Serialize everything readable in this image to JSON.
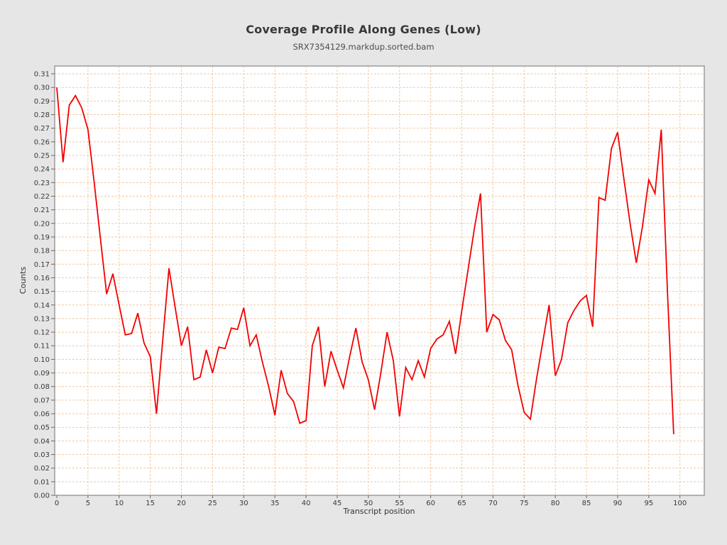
{
  "title": "Coverage Profile Along Genes (Low)",
  "subtitle": "SRX7354129.markdup.sorted.bam",
  "colors": {
    "page_background": "#e6e6e6",
    "plot_background": "#ffffff",
    "frame_border": "#9c9c9c",
    "grid": "#f3c9a2",
    "tick": "#666666",
    "series_line": "#f20000",
    "title_text": "#383838",
    "label_text": "#333333"
  },
  "chart_data": {
    "type": "line",
    "title": "Coverage Profile Along Genes (Low)",
    "subtitle": "SRX7354129.markdup.sorted.bam",
    "xlabel": "Transcript position",
    "ylabel": "Counts",
    "xlim": [
      0,
      104
    ],
    "ylim": [
      0,
      0.3157
    ],
    "grid": true,
    "grid_style": "dashed",
    "legend": false,
    "x_ticks": [
      0,
      5,
      10,
      15,
      20,
      25,
      30,
      35,
      40,
      45,
      50,
      55,
      60,
      65,
      70,
      75,
      80,
      85,
      90,
      95,
      100
    ],
    "y_ticks": [
      0.0,
      0.01,
      0.02,
      0.03,
      0.04,
      0.05,
      0.06,
      0.07,
      0.08,
      0.09,
      0.1,
      0.11,
      0.12,
      0.13,
      0.14,
      0.15,
      0.16,
      0.17,
      0.18,
      0.19,
      0.2,
      0.21,
      0.22,
      0.23,
      0.24,
      0.25,
      0.26,
      0.27,
      0.28,
      0.29,
      0.3,
      0.31
    ],
    "series": [
      {
        "name": "SRX7354129.markdup.sorted.bam",
        "x": [
          0,
          1,
          2,
          3,
          4,
          5,
          6,
          7,
          8,
          9,
          10,
          11,
          12,
          13,
          14,
          15,
          16,
          17,
          18,
          19,
          20,
          21,
          22,
          23,
          24,
          25,
          26,
          27,
          28,
          29,
          30,
          31,
          32,
          33,
          34,
          35,
          36,
          37,
          38,
          39,
          40,
          41,
          42,
          43,
          44,
          45,
          46,
          47,
          48,
          49,
          50,
          51,
          52,
          53,
          54,
          55,
          56,
          57,
          58,
          59,
          60,
          61,
          62,
          63,
          64,
          65,
          66,
          67,
          68,
          69,
          70,
          71,
          72,
          73,
          74,
          75,
          76,
          77,
          78,
          79,
          80,
          81,
          82,
          83,
          84,
          85,
          86,
          87,
          88,
          89,
          90,
          91,
          92,
          93,
          94,
          95,
          96,
          97,
          98,
          99
        ],
        "values": [
          0.3,
          0.245,
          0.287,
          0.294,
          0.285,
          0.269,
          0.23,
          0.189,
          0.148,
          0.163,
          0.14,
          0.118,
          0.119,
          0.134,
          0.112,
          0.102,
          0.06,
          0.114,
          0.167,
          0.138,
          0.11,
          0.124,
          0.085,
          0.087,
          0.107,
          0.09,
          0.109,
          0.108,
          0.123,
          0.122,
          0.138,
          0.11,
          0.118,
          0.098,
          0.08,
          0.059,
          0.092,
          0.075,
          0.069,
          0.053,
          0.055,
          0.11,
          0.124,
          0.08,
          0.106,
          0.092,
          0.079,
          0.102,
          0.123,
          0.098,
          0.085,
          0.063,
          0.09,
          0.12,
          0.099,
          0.058,
          0.094,
          0.085,
          0.099,
          0.087,
          0.108,
          0.115,
          0.118,
          0.128,
          0.104,
          0.136,
          0.166,
          0.196,
          0.222,
          0.12,
          0.133,
          0.129,
          0.114,
          0.107,
          0.081,
          0.061,
          0.056,
          0.086,
          0.113,
          0.14,
          0.088,
          0.1,
          0.127,
          0.136,
          0.143,
          0.147,
          0.124,
          0.219,
          0.217,
          0.255,
          0.267,
          0.233,
          0.2,
          0.171,
          0.198,
          0.232,
          0.222,
          0.269,
          0.15,
          0.045
        ]
      }
    ]
  }
}
